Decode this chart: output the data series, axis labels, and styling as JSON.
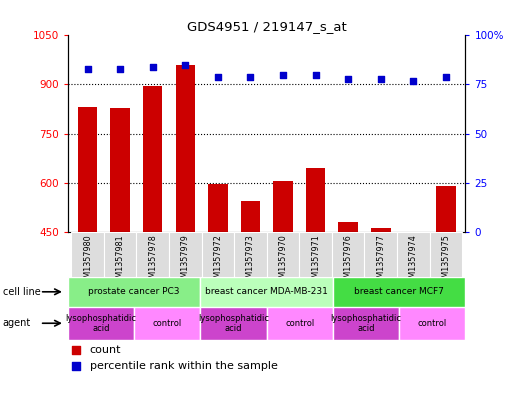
{
  "title": "GDS4951 / 219147_s_at",
  "samples": [
    "GSM1357980",
    "GSM1357981",
    "GSM1357978",
    "GSM1357979",
    "GSM1357972",
    "GSM1357973",
    "GSM1357970",
    "GSM1357971",
    "GSM1357976",
    "GSM1357977",
    "GSM1357974",
    "GSM1357975"
  ],
  "counts": [
    830,
    828,
    895,
    960,
    595,
    545,
    605,
    645,
    480,
    462,
    451,
    590
  ],
  "percentile_ranks": [
    83,
    83,
    84,
    85,
    79,
    79,
    80,
    80,
    78,
    78,
    77,
    79
  ],
  "bar_color": "#cc0000",
  "dot_color": "#0000cc",
  "ylim_left": [
    450,
    1050
  ],
  "ylim_right": [
    0,
    100
  ],
  "yticks_left": [
    450,
    600,
    750,
    900,
    1050
  ],
  "yticks_right": [
    0,
    25,
    50,
    75,
    100
  ],
  "ytick_right_labels": [
    "0",
    "25",
    "50",
    "75",
    "100%"
  ],
  "grid_vals": [
    600,
    750,
    900
  ],
  "cell_lines": [
    {
      "label": "prostate cancer PC3",
      "start": 0,
      "end": 4,
      "color": "#88ee88"
    },
    {
      "label": "breast cancer MDA-MB-231",
      "start": 4,
      "end": 8,
      "color": "#bbffbb"
    },
    {
      "label": "breast cancer MCF7",
      "start": 8,
      "end": 12,
      "color": "#44dd44"
    }
  ],
  "agents": [
    {
      "label": "lysophosphatidic\nacid",
      "start": 0,
      "end": 2,
      "color": "#cc44cc"
    },
    {
      "label": "control",
      "start": 2,
      "end": 4,
      "color": "#ff88ff"
    },
    {
      "label": "lysophosphatidic\nacid",
      "start": 4,
      "end": 6,
      "color": "#cc44cc"
    },
    {
      "label": "control",
      "start": 6,
      "end": 8,
      "color": "#ff88ff"
    },
    {
      "label": "lysophosphatidic\nacid",
      "start": 8,
      "end": 10,
      "color": "#cc44cc"
    },
    {
      "label": "control",
      "start": 10,
      "end": 12,
      "color": "#ff88ff"
    }
  ],
  "cell_line_row_label": "cell line",
  "agent_row_label": "agent",
  "legend_count_label": "count",
  "legend_pct_label": "percentile rank within the sample",
  "xticklabel_bg": "#dddddd"
}
